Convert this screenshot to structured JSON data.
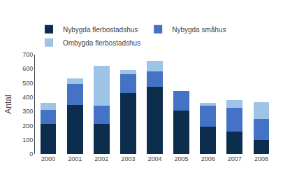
{
  "chart_data": {
    "type": "bar",
    "stacked": true,
    "categories": [
      "2000",
      "2001",
      "2002",
      "2003",
      "2004",
      "2005",
      "2006",
      "2007",
      "2008"
    ],
    "series": [
      {
        "name": "Nybygda flerbostadshus",
        "color": "#0d2d4e",
        "values": [
          210,
          345,
          210,
          430,
          475,
          305,
          190,
          160,
          100
        ]
      },
      {
        "name": "Nybygda småhus",
        "color": "#4472c4",
        "values": [
          100,
          150,
          130,
          130,
          105,
          140,
          150,
          165,
          145
        ]
      },
      {
        "name": "Ombygda flerbostadshus",
        "color": "#9dc3e6",
        "values": [
          50,
          35,
          280,
          30,
          75,
          0,
          20,
          55,
          120
        ]
      }
    ],
    "ylabel": "Antal",
    "ylim": [
      0,
      700
    ],
    "yticks": [
      0,
      100,
      200,
      300,
      400,
      500,
      600,
      700
    ],
    "grid": false,
    "legend": "upper left"
  }
}
